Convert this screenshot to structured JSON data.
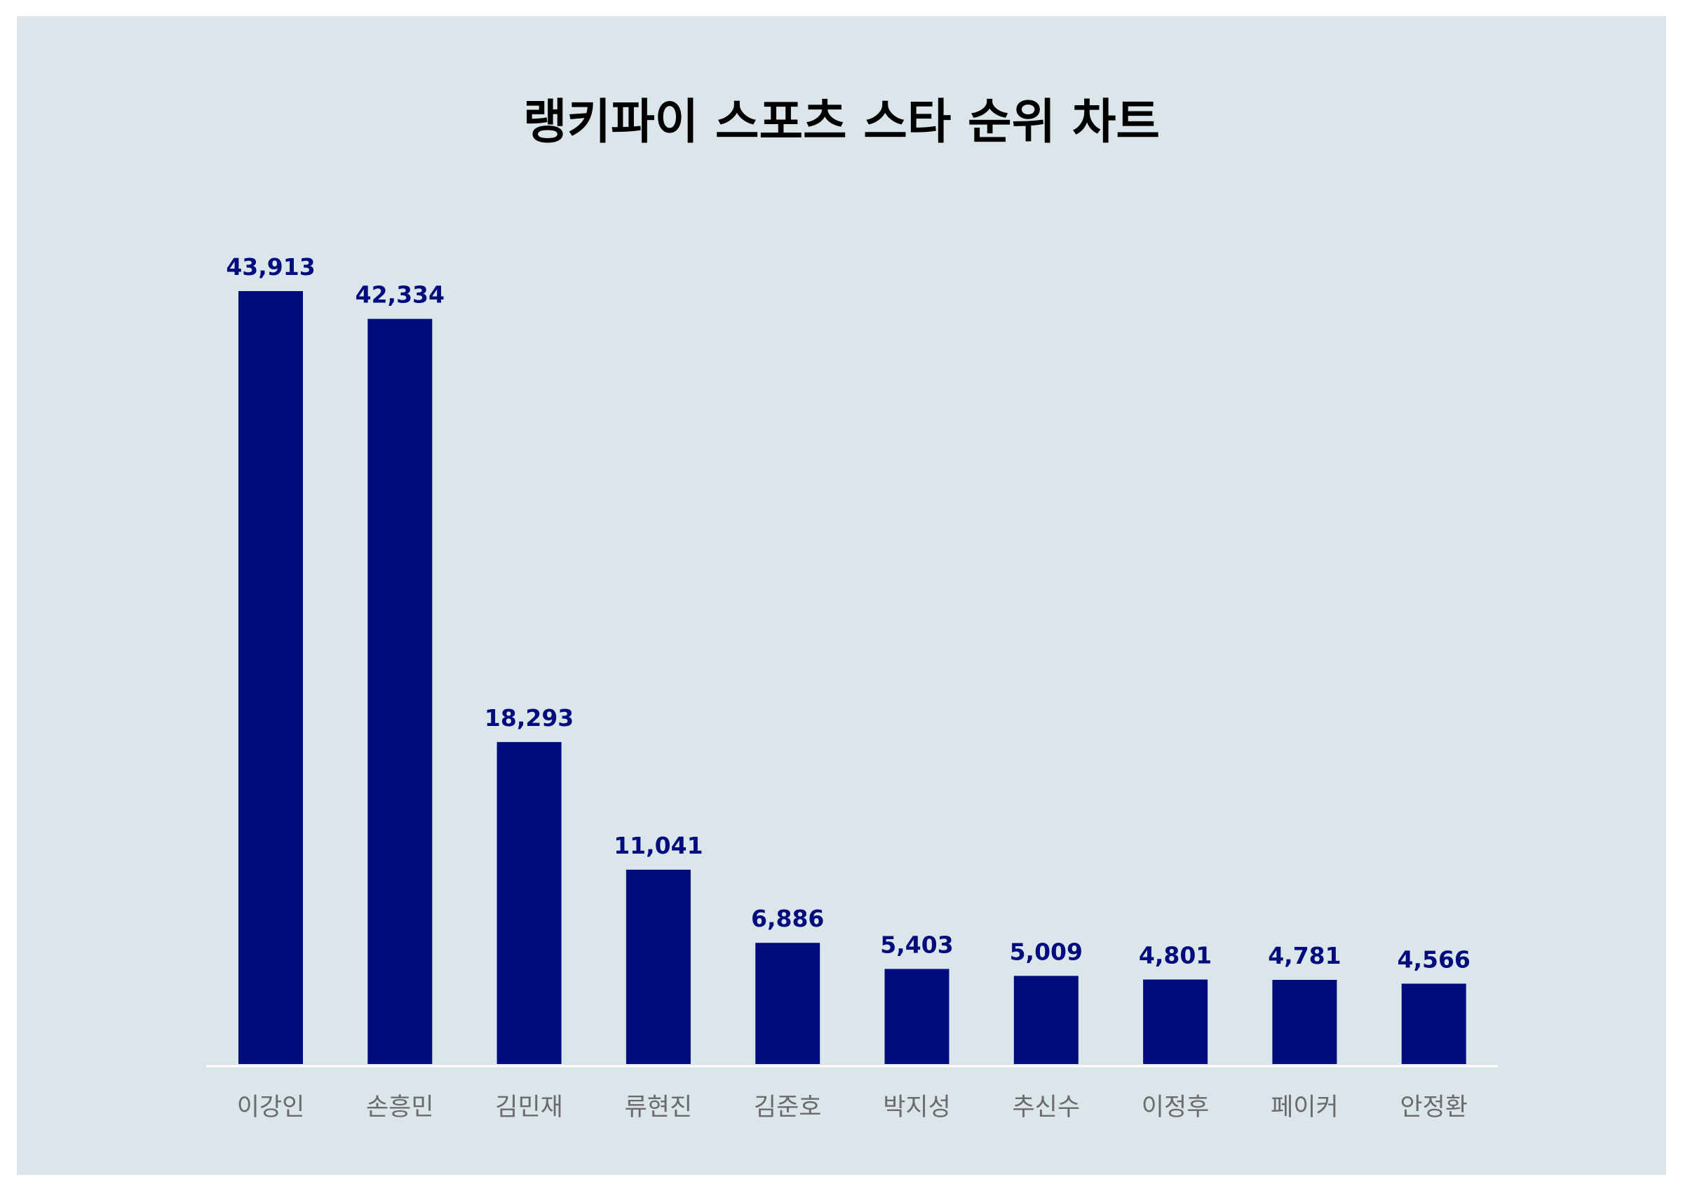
{
  "chart_data": {
    "type": "bar",
    "title": "랭키파이 스포츠 스타 순위 차트",
    "xlabel": "",
    "ylabel": "",
    "categories": [
      "이강인",
      "손흥민",
      "김민재",
      "류현진",
      "김준호",
      "박지성",
      "추신수",
      "이정후",
      "페이커",
      "안정환"
    ],
    "values": [
      43913,
      42334,
      18293,
      11041,
      6886,
      5403,
      5009,
      4801,
      4781,
      4566
    ],
    "value_labels": [
      "43,913",
      "42,334",
      "18,293",
      "11,041",
      "6,886",
      "5,403",
      "5,009",
      "4,801",
      "4,781",
      "4,566"
    ],
    "ylim": [
      0,
      43913
    ],
    "grid": false,
    "legend": "none",
    "colors": {
      "bar": "#020c7c",
      "background": "#dbe6eb",
      "baseline": "#ffffff",
      "value_label": "#020c7c",
      "category_label": "#6b6b6b"
    }
  }
}
